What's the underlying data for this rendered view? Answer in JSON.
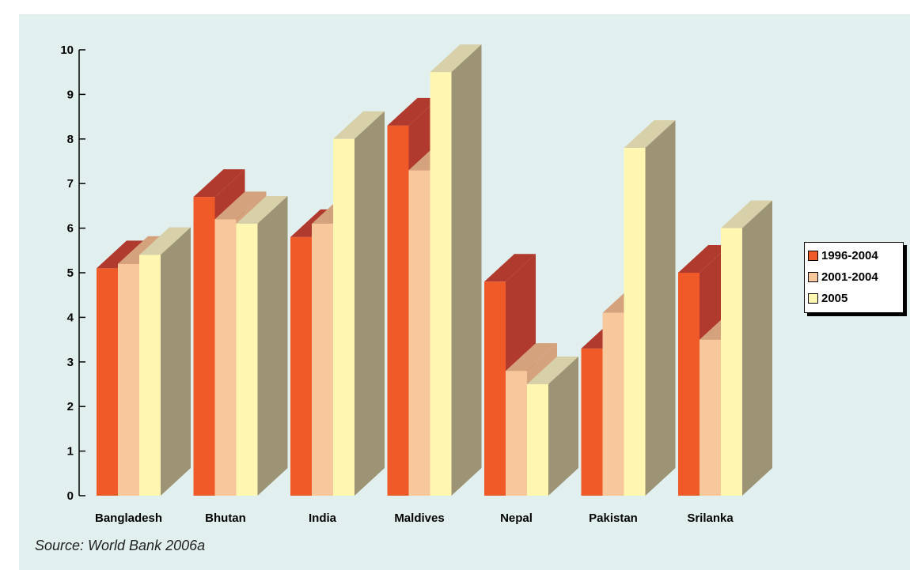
{
  "chart_data": {
    "type": "bar",
    "categories": [
      "Bangladesh",
      "Bhutan",
      "India",
      "Maldives",
      "Nepal",
      "Pakistan",
      "Srilanka"
    ],
    "series": [
      {
        "name": "1996-2004",
        "values": [
          5.1,
          6.7,
          5.8,
          8.3,
          4.8,
          3.3,
          5.0
        ],
        "color": "#f05a28",
        "side": "#b03a2e"
      },
      {
        "name": "2001-2004",
        "values": [
          5.2,
          6.2,
          6.1,
          7.3,
          2.8,
          4.1,
          3.5
        ],
        "color": "#f6c89c",
        "side": "#d4a27c"
      },
      {
        "name": "2005",
        "values": [
          5.4,
          6.1,
          8.0,
          9.5,
          2.5,
          7.8,
          6.0
        ],
        "color": "#fff7b1",
        "side": "#9c9474",
        "top": "#d8d0a8"
      }
    ],
    "ylim": [
      0,
      10
    ],
    "yticks": [
      "0",
      "1",
      "2",
      "3",
      "4",
      "5",
      "6",
      "7",
      "8",
      "9",
      "10"
    ],
    "legend_position": "right",
    "three_d": true,
    "grid": false
  },
  "source": "Source: World Bank 2006a"
}
